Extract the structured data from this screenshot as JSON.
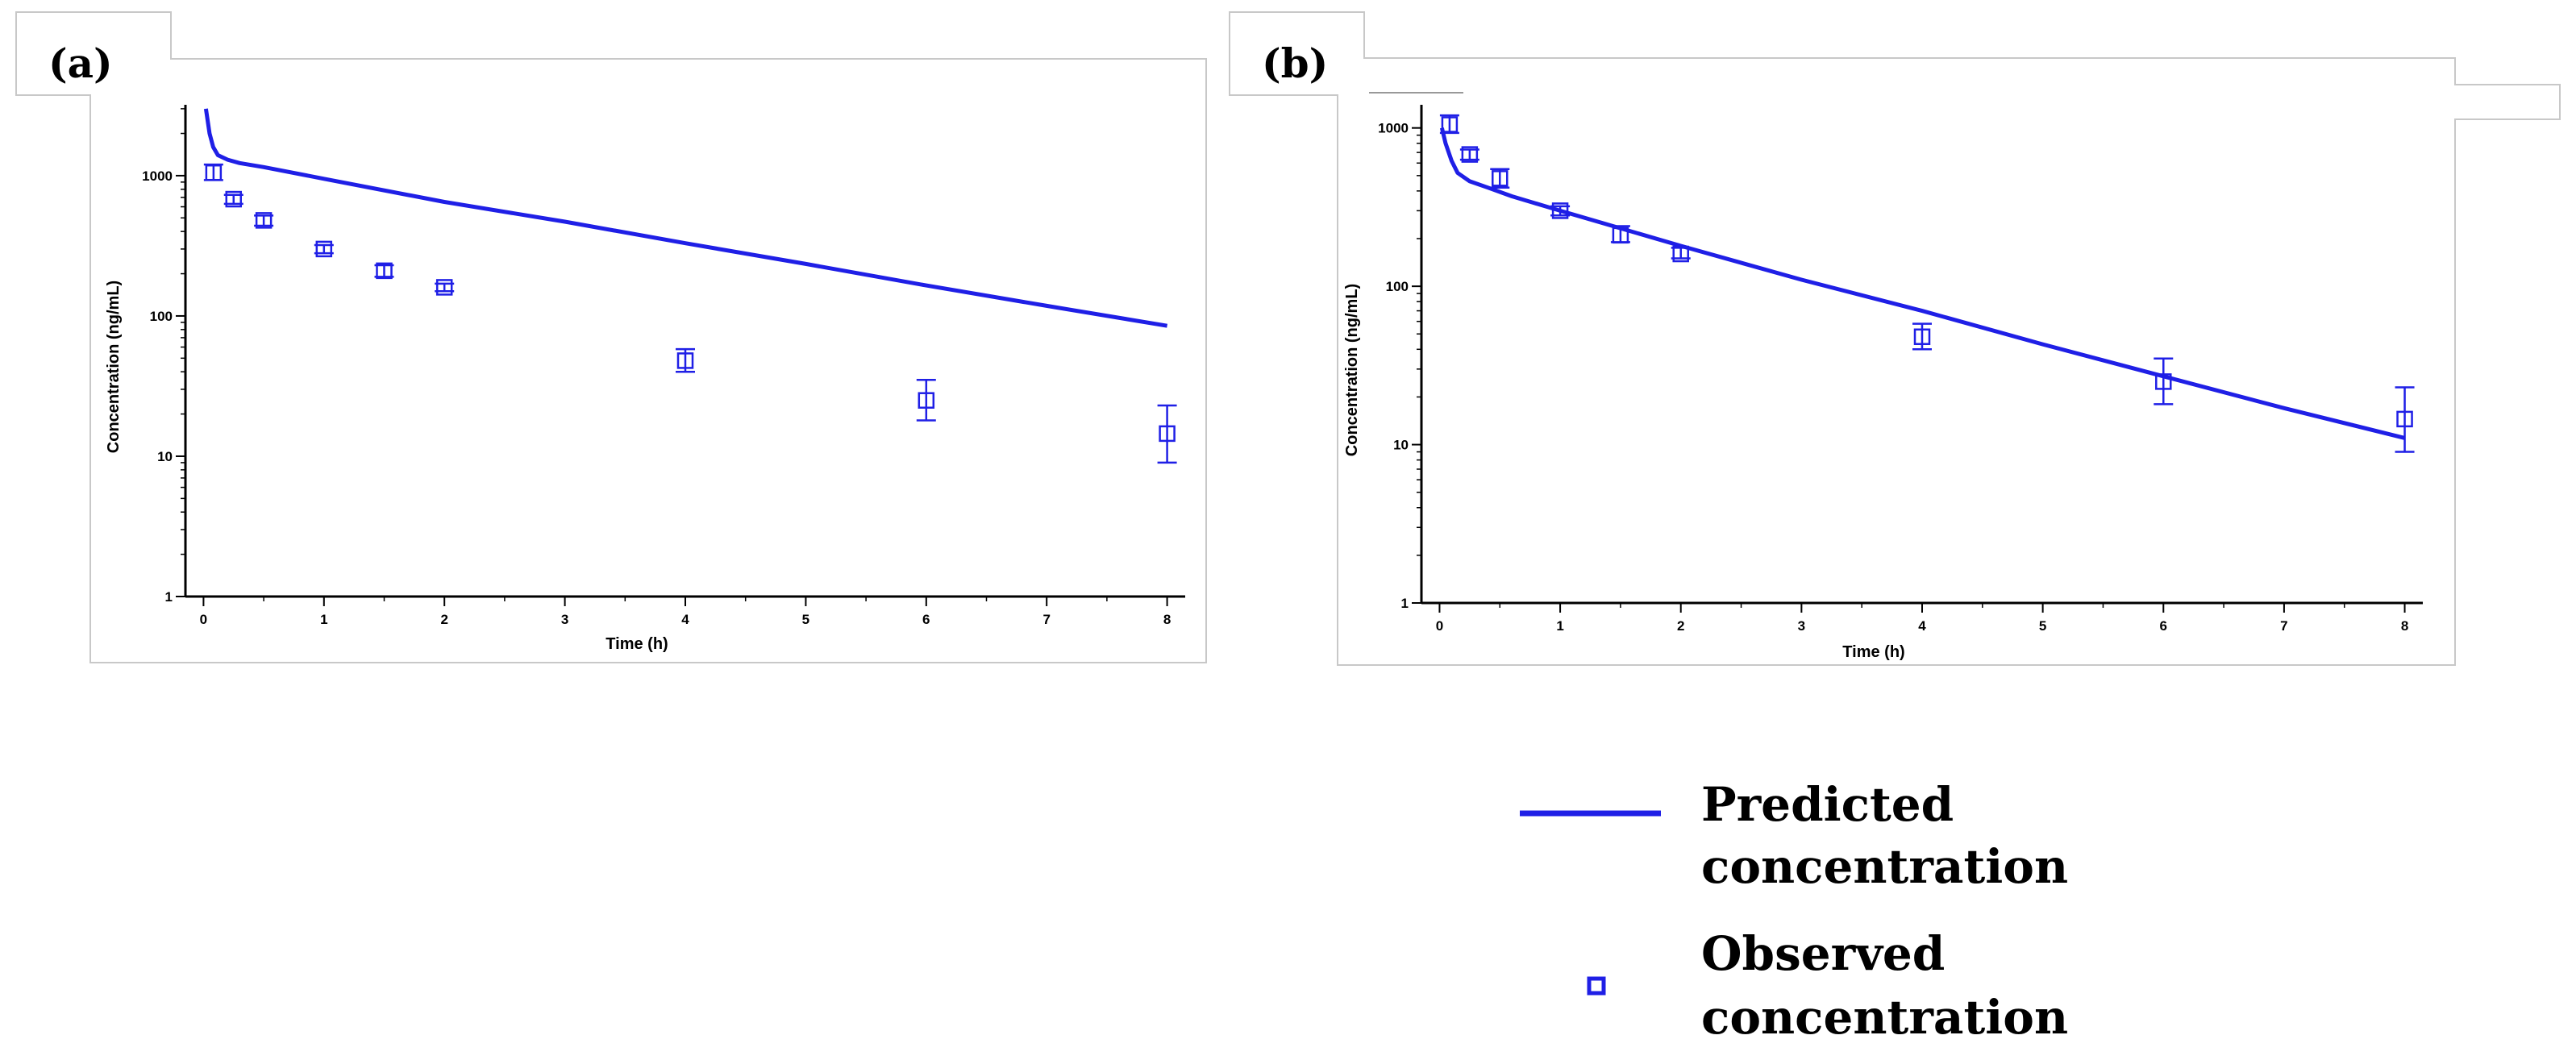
{
  "chart_data": [
    {
      "panel_label": "(a)",
      "type": "line",
      "xlabel": "Time (h)",
      "ylabel": "Concentration (ng/mL)",
      "yscale": "log",
      "xlim": [
        -0.15,
        8.15
      ],
      "ylim": [
        1,
        3200
      ],
      "x_ticks": [
        0,
        1,
        2,
        3,
        4,
        5,
        6,
        7,
        8
      ],
      "y_ticks": [
        1,
        10,
        100,
        1000
      ],
      "series": [
        {
          "name": "Predicted concentration",
          "kind": "line",
          "color": "#1f1fe6",
          "x": [
            0.02,
            0.05,
            0.08,
            0.12,
            0.2,
            0.3,
            0.5,
            1,
            2,
            3,
            4,
            5,
            6,
            7,
            8
          ],
          "y": [
            3000,
            2000,
            1600,
            1400,
            1300,
            1230,
            1150,
            950,
            650,
            470,
            330,
            235,
            165,
            118,
            85
          ]
        },
        {
          "name": "Observed concentration",
          "kind": "scatter",
          "color": "#1f1fe6",
          "x": [
            0.0833,
            0.25,
            0.5,
            1,
            1.5,
            2,
            4,
            6,
            8
          ],
          "y": [
            1050,
            680,
            480,
            300,
            210,
            160,
            48,
            25,
            14.5
          ],
          "err_low": [
            930,
            630,
            440,
            280,
            190,
            150,
            40,
            18,
            9
          ],
          "err_high": [
            1200,
            730,
            520,
            320,
            230,
            170,
            58,
            35,
            23
          ]
        }
      ]
    },
    {
      "panel_label": "(b)",
      "type": "line",
      "xlabel": "Time (h)",
      "ylabel": "Concentration (ng/mL)",
      "yscale": "log",
      "xlim": [
        -0.15,
        8.15
      ],
      "ylim": [
        1,
        1400
      ],
      "x_ticks": [
        0,
        1,
        2,
        3,
        4,
        5,
        6,
        7,
        8
      ],
      "y_ticks": [
        1,
        10,
        100,
        1000
      ],
      "series": [
        {
          "name": "Predicted concentration",
          "kind": "line",
          "color": "#1f1fe6",
          "x": [
            0.02,
            0.05,
            0.1,
            0.15,
            0.25,
            0.4,
            0.6,
            1,
            2,
            3,
            4,
            5,
            6,
            7,
            8
          ],
          "y": [
            1000,
            800,
            620,
            520,
            460,
            420,
            370,
            300,
            180,
            110,
            70,
            43,
            27,
            17,
            11
          ]
        },
        {
          "name": "Observed concentration",
          "kind": "scatter",
          "color": "#1f1fe6",
          "x": [
            0.0833,
            0.25,
            0.5,
            1,
            1.5,
            2,
            4,
            6,
            8
          ],
          "y": [
            1050,
            680,
            480,
            300,
            210,
            160,
            48,
            25,
            14.5
          ],
          "err_low": [
            930,
            630,
            420,
            280,
            190,
            150,
            40,
            18,
            9
          ],
          "err_high": [
            1200,
            730,
            550,
            320,
            240,
            175,
            58,
            35,
            23
          ]
        }
      ]
    }
  ],
  "legend": {
    "predicted_line1": "Predicted",
    "predicted_line2": "concentration",
    "observed_line1": "Observed",
    "observed_line2": "concentration",
    "line_color": "#1f1fe6",
    "marker_color": "#1f1fe6"
  }
}
